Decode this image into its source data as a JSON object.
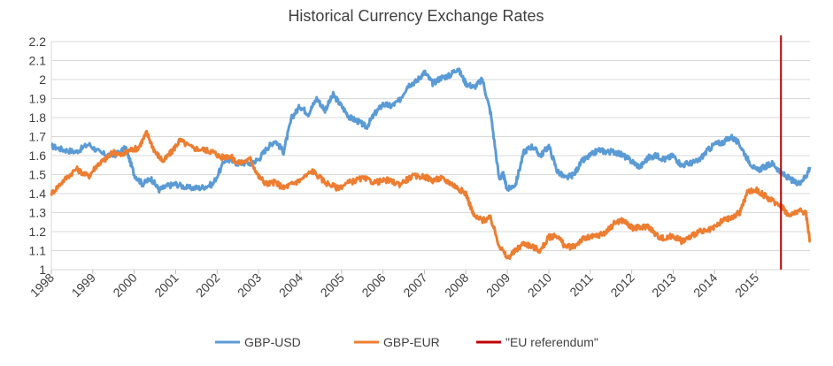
{
  "chart_data": {
    "type": "line",
    "title": "Historical Currency Exchange Rates",
    "xlabel": "",
    "ylabel": "",
    "ylim": [
      1,
      2.2
    ],
    "yticks": [
      "2.2",
      "2.1",
      "2",
      "1.9",
      "1.8",
      "1.7",
      "1.6",
      "1.5",
      "1.4",
      "1.3",
      "1.2",
      "1.1",
      "1"
    ],
    "ytick_values": [
      2.2,
      2.1,
      2.0,
      1.9,
      1.8,
      1.7,
      1.6,
      1.5,
      1.4,
      1.3,
      1.2,
      1.1,
      1.0
    ],
    "xlim": [
      1998,
      2016.3
    ],
    "xticks": [
      "1998",
      "1999",
      "2000",
      "2001",
      "2002",
      "2003",
      "2004",
      "2005",
      "2006",
      "2007",
      "2008",
      "2009",
      "2010",
      "2011",
      "2012",
      "2013",
      "2014",
      "2015"
    ],
    "grid": "horizontal",
    "legend_position": "bottom",
    "series": [
      {
        "name": "GBP-USD",
        "color": "#5b9bd5",
        "x": [
          1998.0,
          1998.3,
          1998.6,
          1998.9,
          1999.2,
          1999.5,
          1999.8,
          2000.0,
          2000.2,
          2000.4,
          2000.6,
          2000.8,
          2001.0,
          2001.3,
          2001.6,
          2001.9,
          2002.2,
          2002.5,
          2002.8,
          2003.0,
          2003.2,
          2003.4,
          2003.6,
          2003.8,
          2004.0,
          2004.2,
          2004.4,
          2004.6,
          2004.8,
          2005.0,
          2005.2,
          2005.4,
          2005.6,
          2005.8,
          2006.0,
          2006.2,
          2006.4,
          2006.6,
          2006.8,
          2007.0,
          2007.2,
          2007.4,
          2007.6,
          2007.8,
          2008.0,
          2008.2,
          2008.4,
          2008.6,
          2008.8,
          2008.9,
          2009.0,
          2009.2,
          2009.4,
          2009.6,
          2009.8,
          2010.0,
          2010.2,
          2010.4,
          2010.6,
          2010.8,
          2011.0,
          2011.2,
          2011.4,
          2011.6,
          2011.8,
          2012.0,
          2012.2,
          2012.4,
          2012.6,
          2012.8,
          2013.0,
          2013.2,
          2013.4,
          2013.6,
          2013.8,
          2014.0,
          2014.2,
          2014.4,
          2014.6,
          2014.8,
          2015.0,
          2015.2,
          2015.4,
          2015.6,
          2015.8,
          2016.0,
          2016.2,
          2016.3
        ],
        "values": [
          1.65,
          1.63,
          1.62,
          1.66,
          1.61,
          1.6,
          1.64,
          1.5,
          1.45,
          1.48,
          1.42,
          1.44,
          1.45,
          1.43,
          1.43,
          1.45,
          1.58,
          1.56,
          1.56,
          1.58,
          1.64,
          1.68,
          1.62,
          1.8,
          1.86,
          1.82,
          1.9,
          1.84,
          1.92,
          1.86,
          1.8,
          1.78,
          1.75,
          1.82,
          1.87,
          1.86,
          1.89,
          1.97,
          1.99,
          2.04,
          1.98,
          2.01,
          2.02,
          2.06,
          1.98,
          1.96,
          2.0,
          1.82,
          1.48,
          1.5,
          1.42,
          1.45,
          1.62,
          1.65,
          1.6,
          1.65,
          1.52,
          1.48,
          1.5,
          1.57,
          1.6,
          1.63,
          1.62,
          1.62,
          1.6,
          1.57,
          1.54,
          1.59,
          1.6,
          1.58,
          1.6,
          1.55,
          1.56,
          1.57,
          1.62,
          1.66,
          1.67,
          1.7,
          1.66,
          1.58,
          1.52,
          1.54,
          1.56,
          1.51,
          1.48,
          1.45,
          1.49,
          1.54
        ]
      },
      {
        "name": "GBP-EUR",
        "color": "#ed7d31",
        "x": [
          1998.0,
          1998.3,
          1998.6,
          1998.9,
          1999.1,
          1999.3,
          1999.5,
          1999.7,
          1999.9,
          2000.1,
          2000.3,
          2000.5,
          2000.7,
          2000.9,
          2001.1,
          2001.4,
          2001.7,
          2001.9,
          2002.1,
          2002.3,
          2002.5,
          2002.8,
          2003.0,
          2003.2,
          2003.4,
          2003.6,
          2003.8,
          2004.0,
          2004.3,
          2004.6,
          2004.9,
          2005.2,
          2005.5,
          2005.8,
          2006.1,
          2006.4,
          2006.7,
          2007.0,
          2007.2,
          2007.4,
          2007.6,
          2007.8,
          2008.0,
          2008.2,
          2008.4,
          2008.6,
          2008.8,
          2009.0,
          2009.2,
          2009.4,
          2009.6,
          2009.8,
          2010.0,
          2010.2,
          2010.4,
          2010.6,
          2010.8,
          2011.0,
          2011.2,
          2011.4,
          2011.6,
          2011.8,
          2012.0,
          2012.2,
          2012.4,
          2012.6,
          2012.8,
          2013.0,
          2013.2,
          2013.4,
          2013.6,
          2013.8,
          2014.0,
          2014.2,
          2014.4,
          2014.6,
          2014.8,
          2015.0,
          2015.2,
          2015.4,
          2015.6,
          2015.8,
          2016.0,
          2016.2,
          2016.3
        ],
        "values": [
          1.4,
          1.47,
          1.53,
          1.49,
          1.55,
          1.58,
          1.62,
          1.6,
          1.63,
          1.64,
          1.72,
          1.62,
          1.57,
          1.62,
          1.68,
          1.64,
          1.63,
          1.62,
          1.59,
          1.6,
          1.56,
          1.58,
          1.49,
          1.45,
          1.46,
          1.43,
          1.45,
          1.47,
          1.52,
          1.46,
          1.43,
          1.46,
          1.48,
          1.46,
          1.47,
          1.45,
          1.49,
          1.49,
          1.47,
          1.48,
          1.46,
          1.43,
          1.4,
          1.28,
          1.26,
          1.27,
          1.13,
          1.06,
          1.1,
          1.14,
          1.12,
          1.1,
          1.17,
          1.18,
          1.12,
          1.12,
          1.16,
          1.17,
          1.18,
          1.2,
          1.25,
          1.26,
          1.22,
          1.22,
          1.23,
          1.18,
          1.16,
          1.18,
          1.15,
          1.17,
          1.2,
          1.2,
          1.22,
          1.26,
          1.27,
          1.3,
          1.41,
          1.42,
          1.39,
          1.36,
          1.34,
          1.28,
          1.31,
          1.3,
          1.15
        ]
      }
    ],
    "markers": [
      {
        "name": "\"EU referendum\"",
        "color": "#c00000",
        "x": 2015.6
      }
    ]
  }
}
